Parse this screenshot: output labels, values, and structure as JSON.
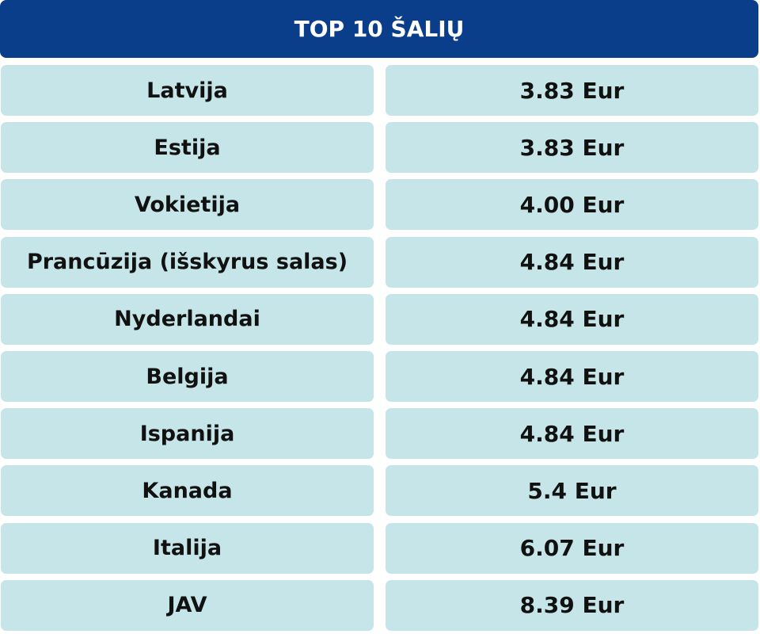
{
  "header": {
    "title": "TOP 10 ŠALIŲ"
  },
  "table": {
    "rows": [
      [
        "Latvija",
        "3.83 Eur"
      ],
      [
        "Estija",
        "3.83 Eur"
      ],
      [
        "Vokietija",
        "4.00 Eur"
      ],
      [
        "Prancūzija (išskyrus salas)",
        "4.84 Eur"
      ],
      [
        "Nyderlandai",
        "4.84 Eur"
      ],
      [
        "Belgija",
        "4.84 Eur"
      ],
      [
        "Ispanija",
        "4.84 Eur"
      ],
      [
        "Kanada",
        "5.4 Eur"
      ],
      [
        "Italija",
        "6.07 Eur"
      ],
      [
        "JAV",
        "8.39 Eur"
      ]
    ]
  }
}
